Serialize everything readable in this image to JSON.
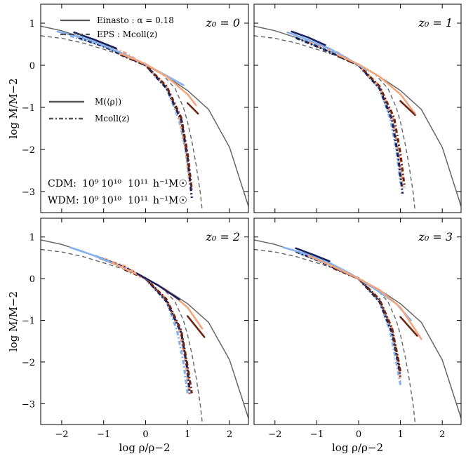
{
  "chart_data": {
    "type": "line",
    "xlabel": "log ρ/ρ−2",
    "ylabel": "log M/M−2",
    "xlim": [
      -2.5,
      2.45
    ],
    "ylim": [
      -3.5,
      1.45
    ],
    "xticks": [
      -2,
      -1,
      0,
      1,
      2
    ],
    "yticks": [
      -3,
      -2,
      -1,
      0,
      1
    ],
    "xtick_labels": [
      "−2",
      "−1",
      "0",
      "1",
      "2"
    ],
    "ytick_labels": [
      "−3",
      "−2",
      "−1",
      "0",
      "1"
    ],
    "legend_top": [
      {
        "label": "Einasto : α = 0.18",
        "style": "solid",
        "color": "#555555"
      },
      {
        "label": "EPS : Mcoll(z)",
        "style": "dashed",
        "color": "#555555"
      }
    ],
    "legend_mid": [
      {
        "label": "M(⟨ρ⟩)",
        "style": "solid",
        "color": "#555555"
      },
      {
        "label": "Mcoll(z)",
        "style": "dashdot",
        "color": "#555555"
      }
    ],
    "mass_legend": {
      "cdm_label": "CDM:",
      "wdm_label": "WDM:",
      "mass_labels": [
        "10⁹",
        "10¹⁰",
        "10¹¹"
      ],
      "unit": "h⁻¹M☉",
      "cdm_colors": [
        "#85b1ec",
        "#2a57c3",
        "#1a2260"
      ],
      "wdm_colors": [
        "#f2a67d",
        "#cf5a2a",
        "#6b2714"
      ],
      "unit_color": "#000000"
    },
    "reference_curves": {
      "einasto": {
        "x": [
          -2.5,
          -2.0,
          -1.5,
          -1.0,
          -0.5,
          0.0,
          0.5,
          1.0,
          1.5,
          2.0,
          2.45
        ],
        "y": [
          0.93,
          0.82,
          0.66,
          0.45,
          0.24,
          0.0,
          -0.27,
          -0.6,
          -1.05,
          -1.95,
          -3.35
        ]
      },
      "eps": {
        "x": [
          -2.5,
          -2.0,
          -1.5,
          -1.0,
          -0.5,
          0.0,
          0.4,
          0.7,
          0.9,
          1.0,
          1.1,
          1.2,
          1.3,
          1.35
        ],
        "y": [
          0.7,
          0.64,
          0.53,
          0.38,
          0.22,
          0.02,
          -0.22,
          -0.55,
          -1.0,
          -1.35,
          -1.8,
          -2.35,
          -3.0,
          -3.45
        ]
      }
    },
    "panels": [
      {
        "z_label": "z₀ = 0",
        "solid": [
          {
            "mass": "1e9",
            "model": "CDM",
            "x": [
              -2.1,
              -1.5,
              -1.0,
              -0.5,
              0.0,
              0.5,
              0.9
            ],
            "y": [
              0.8,
              0.66,
              0.47,
              0.26,
              0.02,
              -0.25,
              -0.47
            ]
          },
          {
            "mass": "1e9",
            "model": "WDM",
            "x": [
              -0.6,
              0.0,
              0.5,
              1.0,
              1.2
            ],
            "y": [
              0.28,
              0.03,
              -0.27,
              -0.69,
              -0.95
            ]
          },
          {
            "mass": "1e11",
            "model": "CDM",
            "x": [
              -1.7,
              -1.2,
              -0.7
            ],
            "y": [
              0.78,
              0.6,
              0.4
            ]
          },
          {
            "mass": "1e11",
            "model": "WDM",
            "x": [
              1.0,
              1.25
            ],
            "y": [
              -0.9,
              -1.15
            ]
          }
        ],
        "dashdot": [
          {
            "mass": "1e9",
            "model": "CDM",
            "x": [
              -1.8,
              -1.0,
              0.0,
              0.5,
              0.8,
              0.95,
              1.05
            ],
            "y": [
              0.7,
              0.45,
              0.0,
              -0.55,
              -1.3,
              -2.0,
              -2.7
            ]
          },
          {
            "mass": "1e9",
            "model": "WDM",
            "x": [
              -1.2,
              -0.5,
              0.0,
              0.5,
              0.8,
              0.95,
              1.05
            ],
            "y": [
              0.55,
              0.3,
              0.0,
              -0.5,
              -1.2,
              -2.0,
              -2.8
            ]
          },
          {
            "mass": "1e11",
            "model": "CDM",
            "x": [
              -1.6,
              -1.0,
              0.0,
              0.5,
              0.85,
              1.0,
              1.1
            ],
            "y": [
              0.66,
              0.45,
              0.0,
              -0.55,
              -1.3,
              -2.2,
              -3.15
            ]
          },
          {
            "mass": "1e11",
            "model": "WDM",
            "x": [
              -0.6,
              0.0,
              0.5,
              0.85,
              1.0,
              1.1
            ],
            "y": [
              0.25,
              0.0,
              -0.5,
              -1.25,
              -2.1,
              -2.95
            ]
          }
        ]
      },
      {
        "z_label": "z₀ = 1",
        "solid": [
          {
            "mass": "1e9",
            "model": "CDM",
            "x": [
              -1.7,
              -1.2,
              -0.7,
              -0.2,
              0.2
            ],
            "y": [
              0.78,
              0.6,
              0.4,
              0.12,
              -0.12
            ]
          },
          {
            "mass": "1e9",
            "model": "WDM",
            "x": [
              -0.5,
              0.0,
              0.5,
              1.0,
              1.35
            ],
            "y": [
              0.25,
              0.02,
              -0.27,
              -0.69,
              -1.15
            ]
          },
          {
            "mass": "1e11",
            "model": "CDM",
            "x": [
              -1.6,
              -1.2,
              -0.8
            ],
            "y": [
              0.8,
              0.66,
              0.48
            ]
          },
          {
            "mass": "1e11",
            "model": "WDM",
            "x": [
              1.0,
              1.35
            ],
            "y": [
              -0.85,
              -1.18
            ]
          }
        ],
        "dashdot": [
          {
            "mass": "1e9",
            "model": "CDM",
            "x": [
              -1.3,
              -0.5,
              0.0,
              0.5,
              0.75,
              0.9,
              1.0
            ],
            "y": [
              0.6,
              0.27,
              0.0,
              -0.55,
              -1.25,
              -2.0,
              -2.8
            ]
          },
          {
            "mass": "1e9",
            "model": "WDM",
            "x": [
              -1.2,
              -0.5,
              0.0,
              0.5,
              0.8,
              0.95,
              1.05
            ],
            "y": [
              0.55,
              0.3,
              0.0,
              -0.5,
              -1.2,
              -2.0,
              -2.9
            ]
          },
          {
            "mass": "1e11",
            "model": "CDM",
            "x": [
              -1.5,
              -1.0,
              0.0,
              0.5,
              0.8,
              0.95,
              1.05
            ],
            "y": [
              0.65,
              0.45,
              0.0,
              -0.55,
              -1.3,
              -2.2,
              -3.05
            ]
          },
          {
            "mass": "1e11",
            "model": "WDM",
            "x": [
              -0.5,
              0.0,
              0.5,
              0.85,
              1.0,
              1.1
            ],
            "y": [
              0.22,
              0.0,
              -0.5,
              -1.25,
              -2.1,
              -2.9
            ]
          }
        ]
      },
      {
        "z_label": "z₀ = 2",
        "solid": [
          {
            "mass": "1e9",
            "model": "CDM",
            "x": [
              -1.8,
              -1.3,
              -0.8,
              -0.3
            ],
            "y": [
              0.75,
              0.58,
              0.38,
              0.15
            ]
          },
          {
            "mass": "1e9",
            "model": "WDM",
            "x": [
              -0.8,
              -0.3,
              0.0,
              0.5,
              1.0,
              1.35
            ],
            "y": [
              0.38,
              0.15,
              0.0,
              -0.27,
              -0.69,
              -1.2
            ]
          },
          {
            "mass": "1e11",
            "model": "CDM",
            "x": [
              -0.2,
              0.3,
              0.8
            ],
            "y": [
              0.12,
              -0.16,
              -0.5
            ]
          },
          {
            "mass": "1e11",
            "model": "WDM",
            "x": [
              1.0,
              1.4
            ],
            "y": [
              -0.9,
              -1.4
            ]
          }
        ],
        "dashdot": [
          {
            "mass": "1e9",
            "model": "CDM",
            "x": [
              -1.2,
              -0.5,
              0.0,
              0.5,
              0.75,
              0.9,
              1.0
            ],
            "y": [
              0.55,
              0.27,
              0.0,
              -0.55,
              -1.25,
              -2.0,
              -2.75
            ]
          },
          {
            "mass": "1e9",
            "model": "WDM",
            "x": [
              -1.0,
              -0.5,
              0.0,
              0.5,
              0.8,
              0.95,
              1.05
            ],
            "y": [
              0.48,
              0.3,
              0.0,
              -0.5,
              -1.2,
              -2.0,
              -2.8
            ]
          },
          {
            "mass": "1e11",
            "model": "CDM",
            "x": [
              -1.1,
              -0.5,
              0.0,
              0.5,
              0.85,
              1.0,
              1.05
            ],
            "y": [
              0.5,
              0.27,
              0.0,
              -0.55,
              -1.3,
              -2.2,
              -2.75
            ]
          },
          {
            "mass": "1e11",
            "model": "WDM",
            "x": [
              -0.5,
              0.0,
              0.5,
              0.85,
              1.0,
              1.1
            ],
            "y": [
              0.22,
              0.0,
              -0.5,
              -1.25,
              -2.1,
              -2.75
            ]
          }
        ]
      },
      {
        "z_label": "z₀ = 3",
        "solid": [
          {
            "mass": "1e9",
            "model": "CDM",
            "x": [
              -1.8,
              -1.2,
              -0.7,
              -0.2,
              0.4,
              0.9,
              1.25
            ],
            "y": [
              0.75,
              0.58,
              0.38,
              0.12,
              -0.25,
              -0.6,
              -1.0
            ]
          },
          {
            "mass": "1e9",
            "model": "WDM",
            "x": [
              -1.2,
              -0.6,
              0.0,
              0.5,
              1.0,
              1.5
            ],
            "y": [
              0.55,
              0.29,
              0.0,
              -0.27,
              -0.69,
              -1.45
            ]
          },
          {
            "mass": "1e11",
            "model": "CDM",
            "x": [
              -1.5,
              -1.1,
              -0.7
            ],
            "y": [
              0.73,
              0.58,
              0.42
            ]
          },
          {
            "mass": "1e11",
            "model": "WDM",
            "x": [
              1.0,
              1.4
            ],
            "y": [
              -0.92,
              -1.37
            ]
          }
        ],
        "dashdot": [
          {
            "mass": "1e9",
            "model": "CDM",
            "x": [
              -1.4,
              -0.6,
              0.0,
              0.5,
              0.75,
              0.9,
              1.0
            ],
            "y": [
              0.6,
              0.3,
              0.0,
              -0.55,
              -1.25,
              -2.0,
              -2.55
            ]
          },
          {
            "mass": "1e9",
            "model": "WDM",
            "x": [
              -1.3,
              -0.5,
              0.0,
              0.5,
              0.8,
              0.95,
              1.0
            ],
            "y": [
              0.58,
              0.27,
              0.0,
              -0.5,
              -1.2,
              -2.0,
              -2.45
            ]
          },
          {
            "mass": "1e11",
            "model": "CDM",
            "x": [
              -1.5,
              -1.0,
              0.0,
              0.5,
              0.8,
              0.95,
              1.0
            ],
            "y": [
              0.65,
              0.45,
              0.0,
              -0.55,
              -1.3,
              -2.05,
              -2.35
            ]
          },
          {
            "mass": "1e11",
            "model": "WDM",
            "x": [
              -0.6,
              0.0,
              0.5,
              0.8,
              0.95,
              1.0
            ],
            "y": [
              0.25,
              0.0,
              -0.5,
              -1.2,
              -1.95,
              -2.25
            ]
          }
        ]
      }
    ]
  }
}
